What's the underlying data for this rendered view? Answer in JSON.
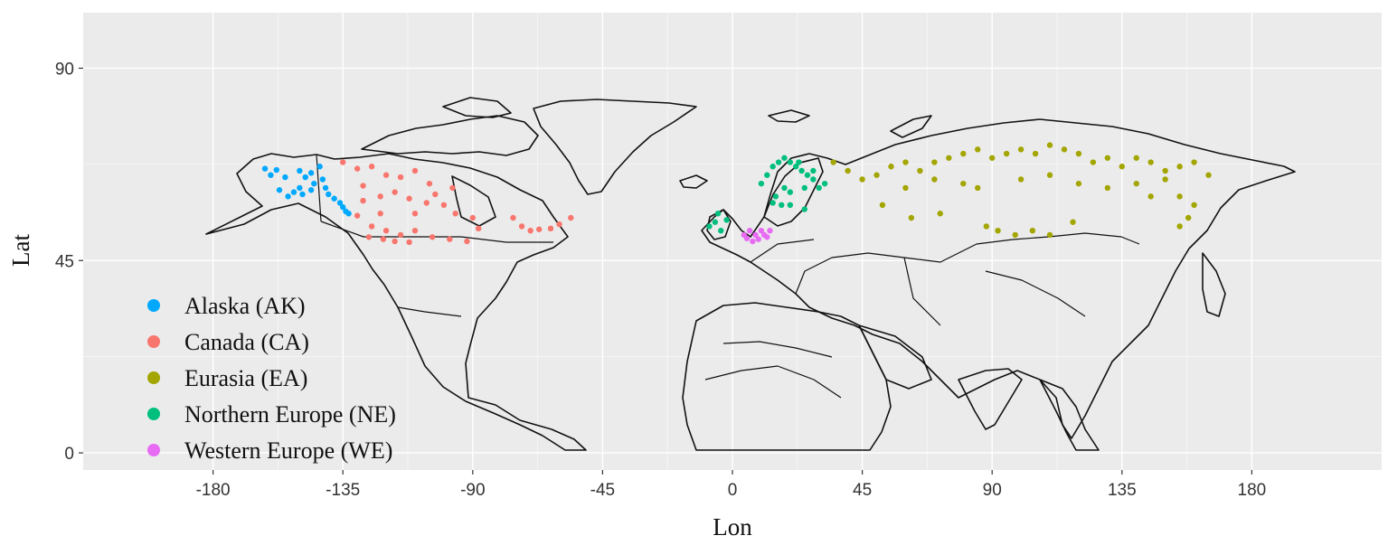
{
  "chart_data": {
    "type": "scatter",
    "title": "",
    "xlabel": "Lon",
    "ylabel": "Lat",
    "xlim": [
      -225,
      225
    ],
    "ylim": [
      -4,
      103
    ],
    "x_ticks": [
      -180,
      -135,
      -90,
      -45,
      0,
      45,
      90,
      135,
      180
    ],
    "y_ticks": [
      0,
      45,
      90
    ],
    "grid": true,
    "background": "#ebebeb",
    "legend_position": "bottom-left",
    "series": [
      {
        "name": "Alaska (AK)",
        "color": "#00a9ff",
        "points": [
          [
            -160,
            65
          ],
          [
            -158,
            66.2
          ],
          [
            -162,
            66.5
          ],
          [
            -155,
            64.5
          ],
          [
            -150,
            66
          ],
          [
            -148,
            64.5
          ],
          [
            -146,
            65.5
          ],
          [
            -145,
            63
          ],
          [
            -142,
            64
          ],
          [
            -143,
            67
          ],
          [
            -150,
            62
          ],
          [
            -152,
            61
          ],
          [
            -149,
            60.5
          ],
          [
            -146,
            61.5
          ],
          [
            -141,
            62
          ],
          [
            -140,
            60.5
          ],
          [
            -138,
            59.5
          ],
          [
            -136,
            58.5
          ],
          [
            -135,
            57.5
          ],
          [
            -134,
            56.5
          ],
          [
            -133,
            56
          ],
          [
            -154,
            60
          ],
          [
            -157,
            61.5
          ]
        ]
      },
      {
        "name": "Canada (CA)",
        "color": "#f8766d",
        "points": [
          [
            -135,
            68
          ],
          [
            -130,
            66.5
          ],
          [
            -125,
            67
          ],
          [
            -120,
            65
          ],
          [
            -115,
            64.5
          ],
          [
            -110,
            66
          ],
          [
            -105,
            63
          ],
          [
            -128,
            62.5
          ],
          [
            -122,
            60
          ],
          [
            -117,
            61
          ],
          [
            -112,
            59.5
          ],
          [
            -106,
            58.5
          ],
          [
            -100,
            58
          ],
          [
            -96,
            56
          ],
          [
            -90,
            55
          ],
          [
            -130,
            55.5
          ],
          [
            -125,
            53
          ],
          [
            -120,
            52
          ],
          [
            -115,
            51
          ],
          [
            -110,
            52
          ],
          [
            -104,
            50.5
          ],
          [
            -98,
            50
          ],
          [
            -92,
            49.5
          ],
          [
            -126,
            50.5
          ],
          [
            -121,
            50
          ],
          [
            -117,
            49.5
          ],
          [
            -112,
            49.3
          ],
          [
            -122,
            56
          ],
          [
            -128,
            59
          ],
          [
            -110,
            56
          ],
          [
            -103,
            60.5
          ],
          [
            -97,
            62
          ],
          [
            -88,
            52.5
          ],
          [
            -76,
            55
          ],
          [
            -73,
            53
          ],
          [
            -70,
            52
          ],
          [
            -67,
            52.3
          ],
          [
            -63,
            52.5
          ],
          [
            -60,
            53.5
          ],
          [
            -56,
            55
          ]
        ]
      },
      {
        "name": "Eurasia (EA)",
        "color": "#a3a500",
        "points": [
          [
            35,
            68
          ],
          [
            40,
            66
          ],
          [
            45,
            64
          ],
          [
            50,
            65
          ],
          [
            55,
            67
          ],
          [
            60,
            68
          ],
          [
            65,
            66
          ],
          [
            70,
            68
          ],
          [
            75,
            69
          ],
          [
            80,
            70
          ],
          [
            85,
            71
          ],
          [
            90,
            69
          ],
          [
            95,
            70
          ],
          [
            100,
            71
          ],
          [
            105,
            70
          ],
          [
            110,
            72
          ],
          [
            115,
            71
          ],
          [
            120,
            70
          ],
          [
            125,
            68
          ],
          [
            130,
            69
          ],
          [
            135,
            67
          ],
          [
            140,
            69
          ],
          [
            145,
            68
          ],
          [
            150,
            66
          ],
          [
            155,
            67
          ],
          [
            160,
            68
          ],
          [
            165,
            65
          ],
          [
            60,
            62
          ],
          [
            70,
            64
          ],
          [
            80,
            63
          ],
          [
            100,
            64
          ],
          [
            110,
            65
          ],
          [
            120,
            63
          ],
          [
            140,
            63
          ],
          [
            150,
            64
          ],
          [
            155,
            60
          ],
          [
            160,
            58
          ],
          [
            88,
            53
          ],
          [
            92,
            52
          ],
          [
            98,
            51
          ],
          [
            104,
            52
          ],
          [
            110,
            51
          ],
          [
            118,
            54
          ],
          [
            155,
            53
          ],
          [
            158,
            55
          ],
          [
            62,
            55
          ],
          [
            72,
            56
          ],
          [
            52,
            58
          ],
          [
            145,
            60
          ],
          [
            130,
            62
          ],
          [
            85,
            62
          ]
        ]
      },
      {
        "name": "Northern Europe (NE)",
        "color": "#00bf7d",
        "points": [
          [
            10,
            63
          ],
          [
            12,
            65
          ],
          [
            14,
            67
          ],
          [
            16,
            68
          ],
          [
            18,
            69
          ],
          [
            20,
            68
          ],
          [
            22,
            67
          ],
          [
            24,
            66
          ],
          [
            26,
            65
          ],
          [
            28,
            64
          ],
          [
            18,
            62
          ],
          [
            20,
            61
          ],
          [
            15,
            60
          ],
          [
            25,
            62
          ],
          [
            28,
            66
          ],
          [
            23,
            68
          ],
          [
            17,
            58
          ],
          [
            14,
            58.5
          ],
          [
            20,
            58
          ],
          [
            25,
            57
          ],
          [
            -8,
            53
          ],
          [
            -6,
            54
          ],
          [
            -4,
            52
          ],
          [
            -2,
            54.5
          ],
          [
            -5,
            56
          ],
          [
            30,
            62
          ],
          [
            32,
            63
          ]
        ]
      },
      {
        "name": "Western Europe (WE)",
        "color": "#e76bf3",
        "points": [
          [
            4,
            51
          ],
          [
            6,
            52
          ],
          [
            8,
            51
          ],
          [
            10,
            52
          ],
          [
            12,
            50.5
          ],
          [
            7,
            49.5
          ],
          [
            9,
            50
          ],
          [
            11,
            51
          ],
          [
            13,
            52
          ],
          [
            5,
            50.2
          ]
        ]
      }
    ]
  }
}
